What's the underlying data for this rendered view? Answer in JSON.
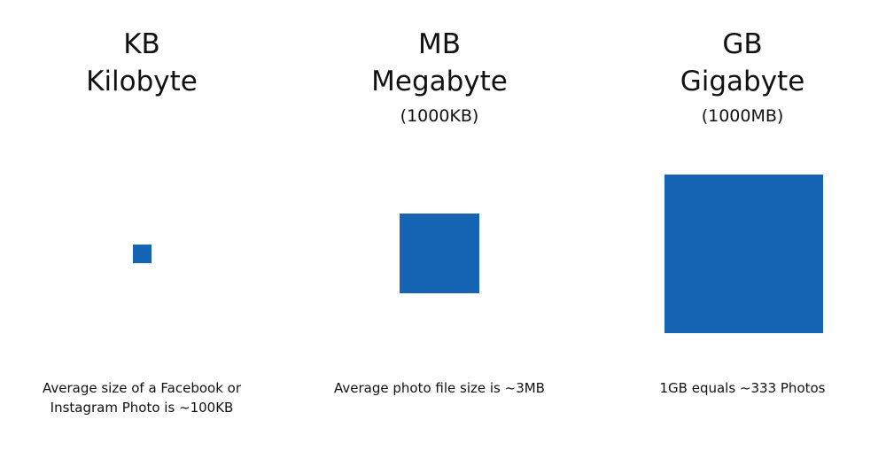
{
  "units": [
    {
      "abbr": "KB",
      "name": "Kilobyte",
      "equivalent": "",
      "caption_lines": [
        "Average size of a Facebook or",
        "Instagram Photo is ~100KB"
      ],
      "square_color": "#1565b4"
    },
    {
      "abbr": "MB",
      "name": "Megabyte",
      "equivalent": "(1000KB)",
      "caption_lines": [
        "Average photo file size is ~3MB"
      ],
      "square_color": "#1565b4"
    },
    {
      "abbr": "GB",
      "name": "Gigabyte",
      "equivalent": "(1000MB)",
      "caption_lines": [
        "1GB equals ~333 Photos"
      ],
      "square_color": "#1565b4"
    }
  ]
}
